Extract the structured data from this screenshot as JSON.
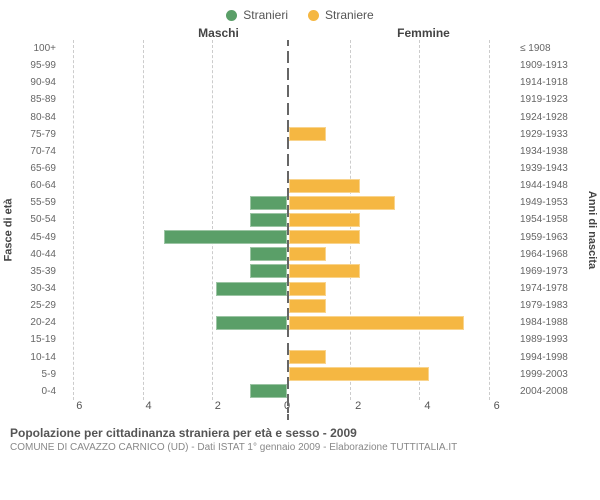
{
  "legend": {
    "male_label": "Stranieri",
    "female_label": "Straniere"
  },
  "colors": {
    "male": "#5a9f68",
    "female": "#f5b742",
    "grid": "#cccccc",
    "axis_dash": "#666666",
    "text": "#555555",
    "bg": "#ffffff"
  },
  "headers": {
    "male": "Maschi",
    "female": "Femmine"
  },
  "y_axis": {
    "left_label": "Fasce di età",
    "right_label": "Anni di nascita"
  },
  "x_axis": {
    "max": 6.5,
    "ticks": [
      0,
      2,
      4,
      6
    ]
  },
  "footer": {
    "title": "Popolazione per cittadinanza straniera per età e sesso - 2009",
    "subtitle": "COMUNE DI CAVAZZO CARNICO (UD) - Dati ISTAT 1° gennaio 2009 - Elaborazione TUTTITALIA.IT"
  },
  "rows": [
    {
      "age": "100+",
      "birth": "≤ 1908",
      "m": 0,
      "f": 0
    },
    {
      "age": "95-99",
      "birth": "1909-1913",
      "m": 0,
      "f": 0
    },
    {
      "age": "90-94",
      "birth": "1914-1918",
      "m": 0,
      "f": 0
    },
    {
      "age": "85-89",
      "birth": "1919-1923",
      "m": 0,
      "f": 0
    },
    {
      "age": "80-84",
      "birth": "1924-1928",
      "m": 0,
      "f": 0
    },
    {
      "age": "75-79",
      "birth": "1929-1933",
      "m": 0,
      "f": 1
    },
    {
      "age": "70-74",
      "birth": "1934-1938",
      "m": 0,
      "f": 0
    },
    {
      "age": "65-69",
      "birth": "1939-1943",
      "m": 0,
      "f": 0
    },
    {
      "age": "60-64",
      "birth": "1944-1948",
      "m": 0,
      "f": 2
    },
    {
      "age": "55-59",
      "birth": "1949-1953",
      "m": 1,
      "f": 3
    },
    {
      "age": "50-54",
      "birth": "1954-1958",
      "m": 1,
      "f": 2
    },
    {
      "age": "45-49",
      "birth": "1959-1963",
      "m": 3.5,
      "f": 2
    },
    {
      "age": "40-44",
      "birth": "1964-1968",
      "m": 1,
      "f": 1
    },
    {
      "age": "35-39",
      "birth": "1969-1973",
      "m": 1,
      "f": 2
    },
    {
      "age": "30-34",
      "birth": "1974-1978",
      "m": 2,
      "f": 1
    },
    {
      "age": "25-29",
      "birth": "1979-1983",
      "m": 0,
      "f": 1
    },
    {
      "age": "20-24",
      "birth": "1984-1988",
      "m": 2,
      "f": 5
    },
    {
      "age": "15-19",
      "birth": "1989-1993",
      "m": 0,
      "f": 0
    },
    {
      "age": "10-14",
      "birth": "1994-1998",
      "m": 0,
      "f": 1
    },
    {
      "age": "5-9",
      "birth": "1999-2003",
      "m": 0,
      "f": 4
    },
    {
      "age": "0-4",
      "birth": "2004-2008",
      "m": 1,
      "f": 0
    }
  ]
}
